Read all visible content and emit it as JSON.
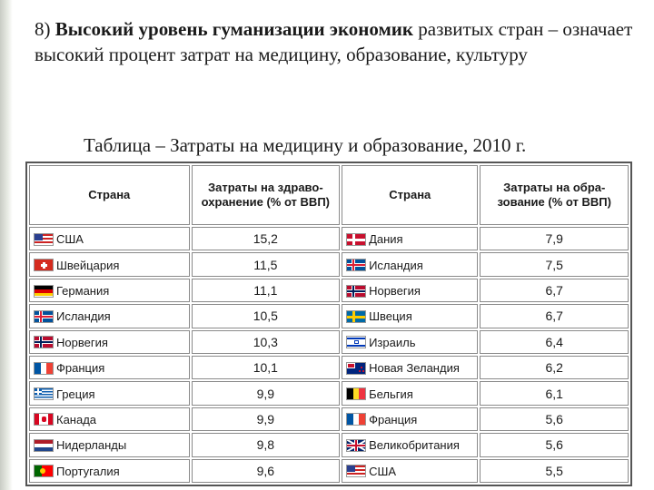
{
  "heading": {
    "number": "8)",
    "bold": "Высокий уровень гуманизации экономик",
    "rest": "развитых стран – означает высокий процент затрат на медицину, образование, культуру"
  },
  "caption": "Таблица – Затраты на медицину и образование, 2010 г.",
  "table": {
    "headers": [
      "Страна",
      "Затраты на здраво-охранение (% от ВВП)",
      "Страна",
      "Затраты на обра-зование (% от ВВП)"
    ],
    "rows": [
      {
        "c1": "США",
        "f1": "usa-flag-icon",
        "v1": "15,2",
        "c2": "Дания",
        "f2": "denmark-flag-icon",
        "v2": "7,9"
      },
      {
        "c1": "Швейцария",
        "f1": "switzerland-flag-icon",
        "v1": "11,5",
        "c2": "Исландия",
        "f2": "iceland-flag-icon",
        "v2": "7,5"
      },
      {
        "c1": "Германия",
        "f1": "germany-flag-icon",
        "v1": "11,1",
        "c2": "Норвегия",
        "f2": "norway-flag-icon",
        "v2": "6,7"
      },
      {
        "c1": "Исландия",
        "f1": "iceland-flag-icon",
        "v1": "10,5",
        "c2": "Швеция",
        "f2": "sweden-flag-icon",
        "v2": "6,7"
      },
      {
        "c1": "Норвегия",
        "f1": "norway-flag-icon",
        "v1": "10,3",
        "c2": "Израиль",
        "f2": "israel-flag-icon",
        "v2": "6,4"
      },
      {
        "c1": "Франция",
        "f1": "france-flag-icon",
        "v1": "10,1",
        "c2": "Новая Зеландия",
        "f2": "new-zealand-flag-icon",
        "v2": "6,2"
      },
      {
        "c1": "Греция",
        "f1": "greece-flag-icon",
        "v1": "9,9",
        "c2": "Бельгия",
        "f2": "belgium-flag-icon",
        "v2": "6,1"
      },
      {
        "c1": "Канада",
        "f1": "canada-flag-icon",
        "v1": "9,9",
        "c2": "Франция",
        "f2": "france-flag-icon",
        "v2": "5,6"
      },
      {
        "c1": "Нидерланды",
        "f1": "netherlands-flag-icon",
        "v1": "9,8",
        "c2": "Великобритания",
        "f2": "uk-flag-icon",
        "v2": "5,6"
      },
      {
        "c1": "Португалия",
        "f1": "portugal-flag-icon",
        "v1": "9,6",
        "c2": "США",
        "f2": "usa-flag-icon",
        "v2": "5,5"
      }
    ]
  }
}
